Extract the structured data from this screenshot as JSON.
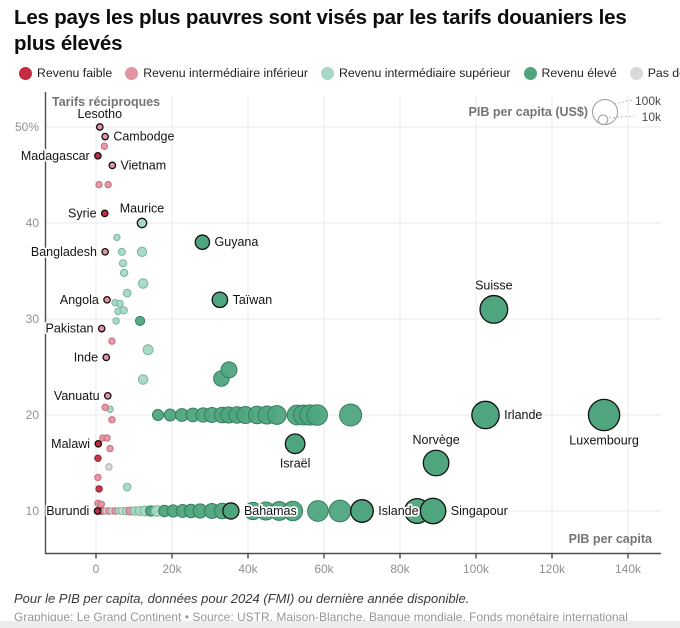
{
  "header": {
    "title": "Les pays les plus pauvres sont visés par les tarifs douaniers les plus élevés"
  },
  "legend": {
    "items": [
      {
        "key": "low",
        "label": "Revenu faible",
        "color": "#c22b40"
      },
      {
        "key": "lm",
        "label": "Revenu intermédiaire inférieur",
        "color": "#e395a2"
      },
      {
        "key": "um",
        "label": "Revenu intermédiaire supérieur",
        "color": "#a6d8c3"
      },
      {
        "key": "high",
        "label": "Revenu élevé",
        "color": "#4ea57e"
      },
      {
        "key": "nd",
        "label": "Pas de données",
        "color": "#d9d9d9"
      }
    ],
    "strokes": {
      "low": "#8f1f30",
      "lm": "#c4707f",
      "um": "#7ab79e",
      "high": "#357e5e",
      "nd": "#ababab"
    }
  },
  "size_legend": {
    "title": "PIB per capita (US$)",
    "big_label": "100k",
    "small_label": "10k"
  },
  "chart_data": {
    "type": "scatter",
    "title": "Les pays les plus pauvres sont visés par les tarifs douaniers les plus élevés",
    "xlabel": "PIB per capita",
    "ylabel": "Tarifs réciproques",
    "x_unit": "US$ (thousands)",
    "y_unit": "% tarif réciproque",
    "xlim": [
      0,
      148
    ],
    "ylim": [
      6,
      53
    ],
    "x_ticks": [
      {
        "v": 0,
        "label": "0"
      },
      {
        "v": 20,
        "label": "20k"
      },
      {
        "v": 40,
        "label": "40k"
      },
      {
        "v": 60,
        "label": "60k"
      },
      {
        "v": 80,
        "label": "80k"
      },
      {
        "v": 100,
        "label": "100k"
      },
      {
        "v": 120,
        "label": "120k"
      },
      {
        "v": 140,
        "label": "140k"
      }
    ],
    "y_ticks": [
      {
        "v": 50,
        "label": "50%"
      },
      {
        "v": 40,
        "label": "40"
      },
      {
        "v": 30,
        "label": "30"
      },
      {
        "v": 20,
        "label": "20"
      },
      {
        "v": 10,
        "label": "10"
      }
    ],
    "labeled_points": [
      {
        "name": "Lesotho",
        "gdp_k": 1.0,
        "tariff": 50,
        "cat": "lm",
        "label_pos": "above"
      },
      {
        "name": "Cambodge",
        "gdp_k": 2.4,
        "tariff": 49,
        "cat": "lm",
        "label_pos": "right"
      },
      {
        "name": "Madagascar",
        "gdp_k": 0.5,
        "tariff": 47,
        "cat": "low",
        "label_pos": "left"
      },
      {
        "name": "Vietnam",
        "gdp_k": 4.3,
        "tariff": 46,
        "cat": "lm",
        "label_pos": "right"
      },
      {
        "name": "Syrie",
        "gdp_k": 2.3,
        "tariff": 41,
        "cat": "low",
        "label_pos": "left"
      },
      {
        "name": "Maurice",
        "gdp_k": 12.1,
        "tariff": 40,
        "cat": "um",
        "label_pos": "above"
      },
      {
        "name": "Guyana",
        "gdp_k": 28.0,
        "tariff": 38,
        "cat": "high",
        "label_pos": "right"
      },
      {
        "name": "Bangladesh",
        "gdp_k": 2.4,
        "tariff": 37,
        "cat": "lm",
        "label_pos": "left"
      },
      {
        "name": "Angola",
        "gdp_k": 2.9,
        "tariff": 32,
        "cat": "lm",
        "label_pos": "left"
      },
      {
        "name": "Taïwan",
        "gdp_k": 32.6,
        "tariff": 32,
        "cat": "high",
        "label_pos": "right"
      },
      {
        "name": "Suisse",
        "gdp_k": 104.7,
        "tariff": 31,
        "cat": "high",
        "label_pos": "above"
      },
      {
        "name": "Pakistan",
        "gdp_k": 1.5,
        "tariff": 29,
        "cat": "lm",
        "label_pos": "left"
      },
      {
        "name": "Inde",
        "gdp_k": 2.7,
        "tariff": 26,
        "cat": "lm",
        "label_pos": "left"
      },
      {
        "name": "Vanuatu",
        "gdp_k": 3.1,
        "tariff": 22,
        "cat": "lm",
        "label_pos": "left"
      },
      {
        "name": "Irlande",
        "gdp_k": 102.5,
        "tariff": 20,
        "cat": "high",
        "label_pos": "right"
      },
      {
        "name": "Luxembourg",
        "gdp_k": 133.7,
        "tariff": 20,
        "cat": "high",
        "label_pos": "below"
      },
      {
        "name": "Malawi",
        "gdp_k": 0.6,
        "tariff": 17,
        "cat": "low",
        "label_pos": "left"
      },
      {
        "name": "Israël",
        "gdp_k": 52.4,
        "tariff": 17,
        "cat": "high",
        "label_pos": "below"
      },
      {
        "name": "Norvège",
        "gdp_k": 89.5,
        "tariff": 15,
        "cat": "high",
        "label_pos": "above"
      },
      {
        "name": "Burundi",
        "gdp_k": 0.4,
        "tariff": 10,
        "cat": "low",
        "label_pos": "left"
      },
      {
        "name": "Bahamas",
        "gdp_k": 35.5,
        "tariff": 10,
        "cat": "high",
        "label_pos": "right"
      },
      {
        "name": "Islande",
        "gdp_k": 70.0,
        "tariff": 10,
        "cat": "high",
        "label_pos": "right"
      },
      {
        "name": "Singapour",
        "gdp_k": 88.7,
        "tariff": 10,
        "cat": "high",
        "label_pos": "right"
      }
    ],
    "other_points": [
      {
        "gdp_k": 2.2,
        "tariff": 48,
        "cat": "lm"
      },
      {
        "gdp_k": 0.8,
        "tariff": 44,
        "cat": "lm"
      },
      {
        "gdp_k": 3.2,
        "tariff": 44,
        "cat": "lm"
      },
      {
        "gdp_k": 5.5,
        "tariff": 38.5,
        "cat": "um"
      },
      {
        "gdp_k": 6.8,
        "tariff": 37,
        "cat": "um"
      },
      {
        "gdp_k": 12.1,
        "tariff": 37,
        "cat": "um"
      },
      {
        "gdp_k": 7.1,
        "tariff": 35.8,
        "cat": "um"
      },
      {
        "gdp_k": 7.4,
        "tariff": 34.8,
        "cat": "um"
      },
      {
        "gdp_k": 12.4,
        "tariff": 33.7,
        "cat": "um"
      },
      {
        "gdp_k": 8.2,
        "tariff": 32.7,
        "cat": "um"
      },
      {
        "gdp_k": 5.0,
        "tariff": 31.7,
        "cat": "um"
      },
      {
        "gdp_k": 6.3,
        "tariff": 31.6,
        "cat": "um"
      },
      {
        "gdp_k": 5.8,
        "tariff": 30.8,
        "cat": "um"
      },
      {
        "gdp_k": 7.3,
        "tariff": 30.9,
        "cat": "um"
      },
      {
        "gdp_k": 5.3,
        "tariff": 29.8,
        "cat": "um"
      },
      {
        "gdp_k": 11.6,
        "tariff": 29.8,
        "cat": "high"
      },
      {
        "gdp_k": 4.2,
        "tariff": 27.7,
        "cat": "lm"
      },
      {
        "gdp_k": 13.7,
        "tariff": 26.8,
        "cat": "um"
      },
      {
        "gdp_k": 12.4,
        "tariff": 23.7,
        "cat": "um"
      },
      {
        "gdp_k": 33.0,
        "tariff": 23.8,
        "cat": "high"
      },
      {
        "gdp_k": 35.0,
        "tariff": 24.7,
        "cat": "high"
      },
      {
        "gdp_k": 3.7,
        "tariff": 20.6,
        "cat": "um"
      },
      {
        "gdp_k": 2.4,
        "tariff": 20.8,
        "cat": "lm"
      },
      {
        "gdp_k": 4.2,
        "tariff": 19.5,
        "cat": "lm"
      },
      {
        "gdp_k": 16.3,
        "tariff": 20,
        "cat": "high"
      },
      {
        "gdp_k": 19.5,
        "tariff": 20,
        "cat": "high"
      },
      {
        "gdp_k": 22.6,
        "tariff": 20,
        "cat": "high"
      },
      {
        "gdp_k": 25.5,
        "tariff": 20,
        "cat": "high"
      },
      {
        "gdp_k": 28.2,
        "tariff": 20,
        "cat": "high"
      },
      {
        "gdp_k": 30.5,
        "tariff": 20,
        "cat": "high"
      },
      {
        "gdp_k": 33.2,
        "tariff": 20,
        "cat": "high"
      },
      {
        "gdp_k": 34.9,
        "tariff": 20,
        "cat": "high"
      },
      {
        "gdp_k": 37.1,
        "tariff": 20,
        "cat": "high"
      },
      {
        "gdp_k": 39.3,
        "tariff": 20,
        "cat": "high"
      },
      {
        "gdp_k": 42.4,
        "tariff": 20,
        "cat": "high"
      },
      {
        "gdp_k": 45.0,
        "tariff": 20,
        "cat": "high"
      },
      {
        "gdp_k": 47.6,
        "tariff": 20,
        "cat": "high"
      },
      {
        "gdp_k": 52.9,
        "tariff": 20,
        "cat": "high"
      },
      {
        "gdp_k": 54.6,
        "tariff": 20,
        "cat": "high"
      },
      {
        "gdp_k": 56.3,
        "tariff": 20,
        "cat": "high"
      },
      {
        "gdp_k": 58.2,
        "tariff": 20,
        "cat": "high"
      },
      {
        "gdp_k": 67.0,
        "tariff": 20,
        "cat": "high"
      },
      {
        "gdp_k": 1.8,
        "tariff": 17.6,
        "cat": "lm"
      },
      {
        "gdp_k": 2.9,
        "tariff": 17.6,
        "cat": "lm"
      },
      {
        "gdp_k": 3.7,
        "tariff": 16.5,
        "cat": "lm"
      },
      {
        "gdp_k": 0.5,
        "tariff": 15.5,
        "cat": "low"
      },
      {
        "gdp_k": 3.4,
        "tariff": 14.6,
        "cat": "nd"
      },
      {
        "gdp_k": 0.5,
        "tariff": 13.5,
        "cat": "lm"
      },
      {
        "gdp_k": 0.8,
        "tariff": 12.3,
        "cat": "low"
      },
      {
        "gdp_k": 8.2,
        "tariff": 12.5,
        "cat": "um"
      },
      {
        "gdp_k": 0.5,
        "tariff": 10.8,
        "cat": "lm"
      },
      {
        "gdp_k": 1.4,
        "tariff": 10.7,
        "cat": "lm"
      },
      {
        "gdp_k": 0.6,
        "tariff": 10,
        "cat": "low"
      },
      {
        "gdp_k": 1.0,
        "tariff": 10,
        "cat": "nd"
      },
      {
        "gdp_k": 1.5,
        "tariff": 10,
        "cat": "low"
      },
      {
        "gdp_k": 2.1,
        "tariff": 10,
        "cat": "lm"
      },
      {
        "gdp_k": 2.7,
        "tariff": 10,
        "cat": "nd"
      },
      {
        "gdp_k": 3.4,
        "tariff": 10,
        "cat": "lm"
      },
      {
        "gdp_k": 4.2,
        "tariff": 10,
        "cat": "nd"
      },
      {
        "gdp_k": 5.0,
        "tariff": 10,
        "cat": "lm"
      },
      {
        "gdp_k": 5.9,
        "tariff": 10,
        "cat": "um"
      },
      {
        "gdp_k": 6.9,
        "tariff": 10,
        "cat": "nd"
      },
      {
        "gdp_k": 7.9,
        "tariff": 10,
        "cat": "um"
      },
      {
        "gdp_k": 9.0,
        "tariff": 10,
        "cat": "lm"
      },
      {
        "gdp_k": 10.2,
        "tariff": 10,
        "cat": "um"
      },
      {
        "gdp_k": 11.5,
        "tariff": 10,
        "cat": "um"
      },
      {
        "gdp_k": 12.9,
        "tariff": 10,
        "cat": "um"
      },
      {
        "gdp_k": 14.4,
        "tariff": 10,
        "cat": "high"
      },
      {
        "gdp_k": 16.0,
        "tariff": 10,
        "cat": "um"
      },
      {
        "gdp_k": 18.0,
        "tariff": 10,
        "cat": "high"
      },
      {
        "gdp_k": 20.3,
        "tariff": 10,
        "cat": "high"
      },
      {
        "gdp_k": 22.8,
        "tariff": 10,
        "cat": "high"
      },
      {
        "gdp_k": 25.0,
        "tariff": 10,
        "cat": "high"
      },
      {
        "gdp_k": 27.4,
        "tariff": 10,
        "cat": "high"
      },
      {
        "gdp_k": 30.5,
        "tariff": 10,
        "cat": "high"
      },
      {
        "gdp_k": 33.2,
        "tariff": 10,
        "cat": "high"
      },
      {
        "gdp_k": 41.3,
        "tariff": 10,
        "cat": "high"
      },
      {
        "gdp_k": 44.7,
        "tariff": 10,
        "cat": "high"
      },
      {
        "gdp_k": 48.2,
        "tariff": 10,
        "cat": "high"
      },
      {
        "gdp_k": 51.8,
        "tariff": 10,
        "cat": "high"
      },
      {
        "gdp_k": 58.4,
        "tariff": 10,
        "cat": "high"
      },
      {
        "gdp_k": 64.2,
        "tariff": 10,
        "cat": "high"
      },
      {
        "gdp_k": 84.5,
        "tariff": 10,
        "cat": "high",
        "outline": true
      }
    ]
  },
  "footer": {
    "note": "Pour le PIB per capita, données pour 2024 (FMI) ou dernière année disponible.",
    "credit": "Graphique: Le Grand Continent • Source: USTR, Maison-Blanche, Banque mondiale, Fonds monétaire international"
  }
}
